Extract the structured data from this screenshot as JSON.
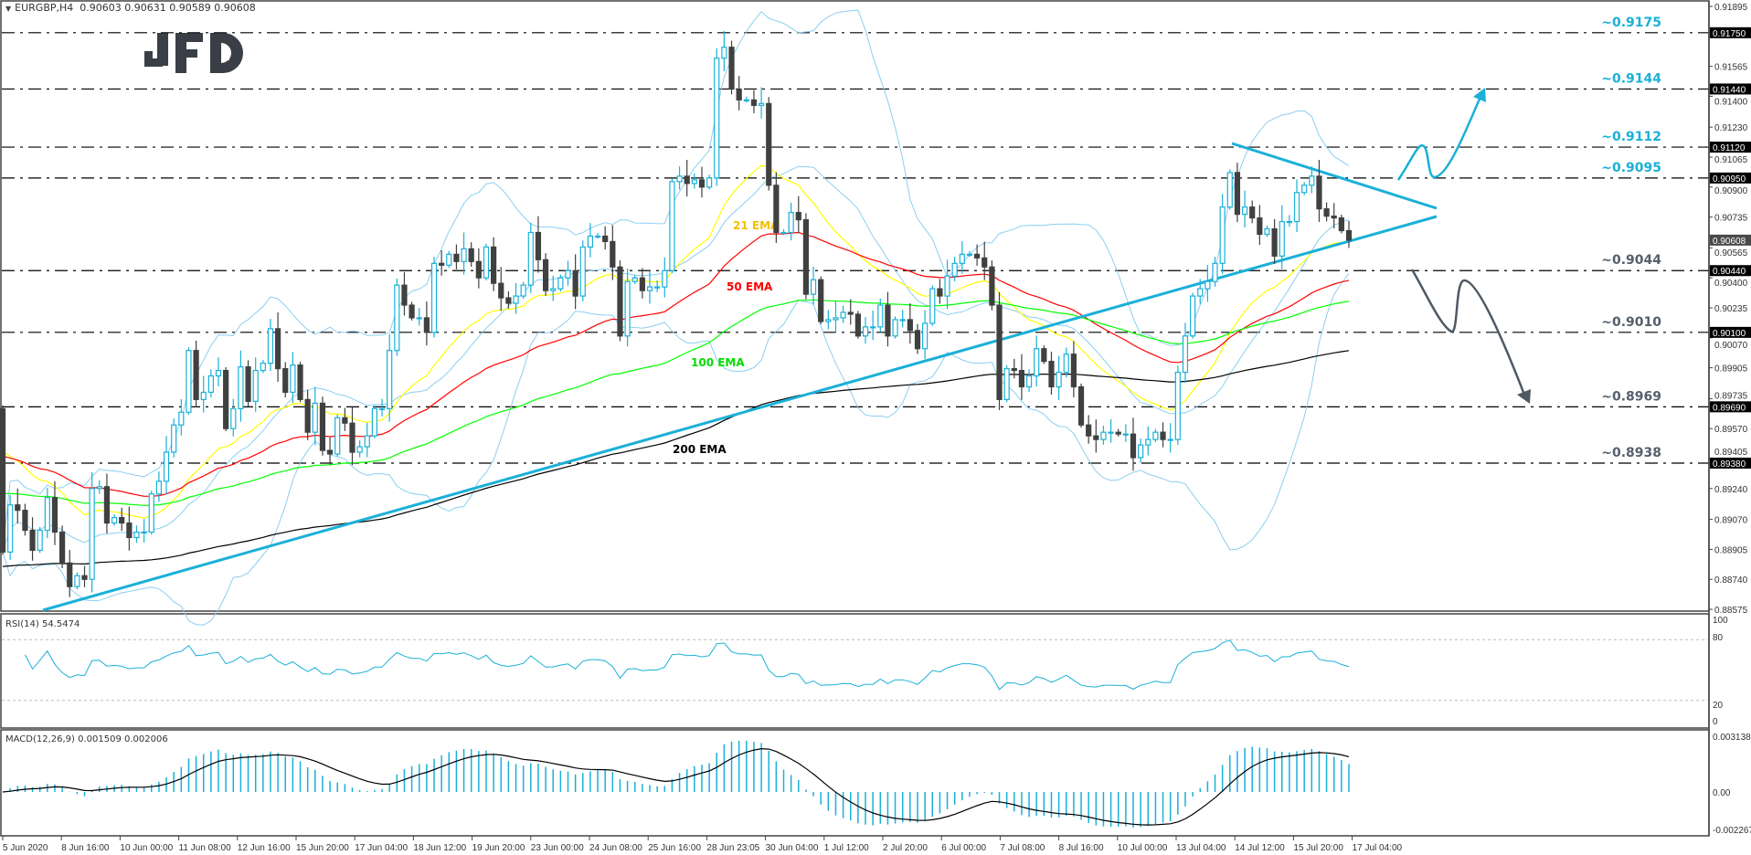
{
  "header": {
    "symbol": "EURGBP,H4",
    "ohlc": "0.90603 0.90631 0.90589 0.90608"
  },
  "logo": "JFD",
  "chart_data": {
    "type": "candlestick",
    "open_first": 0.8968,
    "closes": [
      0.8889,
      0.8915,
      0.8912,
      0.8901,
      0.889,
      0.8901,
      0.8919,
      0.89,
      0.8883,
      0.887,
      0.8876,
      0.8874,
      0.8924,
      0.8925,
      0.8905,
      0.8908,
      0.8905,
      0.8897,
      0.89,
      0.89,
      0.8921,
      0.8928,
      0.8944,
      0.8959,
      0.8966,
      0.9,
      0.8973,
      0.8977,
      0.8986,
      0.8989,
      0.8957,
      0.8968,
      0.8991,
      0.8972,
      0.8989,
      0.8993,
      0.9012,
      0.899,
      0.8977,
      0.8992,
      0.8973,
      0.8955,
      0.8971,
      0.8945,
      0.8943,
      0.8963,
      0.896,
      0.8944,
      0.8947,
      0.8953,
      0.8968,
      0.8968,
      0.9,
      0.9036,
      0.9025,
      0.9018,
      0.9018,
      0.901,
      0.9048,
      0.9047,
      0.9053,
      0.9049,
      0.9056,
      0.9049,
      0.904,
      0.9057,
      0.9037,
      0.9029,
      0.9026,
      0.903,
      0.9036,
      0.9065,
      0.905,
      0.9033,
      0.9034,
      0.904,
      0.9044,
      0.903,
      0.9057,
      0.9063,
      0.9063,
      0.906,
      0.9046,
      0.9008,
      0.9038,
      0.904,
      0.9033,
      0.9035,
      0.9035,
      0.9044,
      0.9093,
      0.9096,
      0.9092,
      0.9094,
      0.909,
      0.9095,
      0.9161,
      0.9167,
      0.9144,
      0.9138,
      0.9138,
      0.9135,
      0.9136,
      0.9091,
      0.9065,
      0.9065,
      0.9076,
      0.9072,
      0.9031,
      0.9039,
      0.9016,
      0.9017,
      0.9018,
      0.9021,
      0.902,
      0.9008,
      0.9013,
      0.9013,
      0.9025,
      0.9008,
      0.9017,
      0.9017,
      0.9011,
      0.9001,
      0.9015,
      0.9034,
      0.903,
      0.9041,
      0.9048,
      0.9053,
      0.9053,
      0.9051,
      0.9046,
      0.9025,
      0.8973,
      0.899,
      0.8989,
      0.898,
      0.8986,
      0.9001,
      0.8994,
      0.898,
      0.8988,
      0.8998,
      0.898,
      0.8959,
      0.8953,
      0.8951,
      0.8955,
      0.8955,
      0.8954,
      0.8954,
      0.8941,
      0.8948,
      0.8951,
      0.8955,
      0.8951,
      0.8951,
      0.8988,
      0.9008,
      0.903,
      0.9034,
      0.9038,
      0.9048,
      0.9079,
      0.9098,
      0.9075,
      0.9079,
      0.9073,
      0.9064,
      0.9067,
      0.9052,
      0.9071,
      0.9071,
      0.9087,
      0.9091,
      0.9096,
      0.9078,
      0.9074,
      0.9073,
      0.9066,
      0.90608
    ],
    "last_price": "0.90608",
    "colors": {
      "bull": "#1ab0d8",
      "bear": "#404040",
      "bands": "#8ccff0",
      "trendline": "#1ab0d8",
      "up_scenario": "#1ab0d8",
      "down_scenario": "#4f5964"
    },
    "price_axis": {
      "min": 0.88575,
      "max": 0.91895,
      "ticks": [
        "0.91895",
        "0.91565",
        "0.91400",
        "0.91230",
        "0.91065",
        "0.90900",
        "0.90735",
        "0.90565",
        "0.90400",
        "0.90235",
        "0.90070",
        "0.89905",
        "0.89735",
        "0.89570",
        "0.89405",
        "0.89240",
        "0.89070",
        "0.88905",
        "0.88740",
        "0.88575"
      ]
    },
    "time_labels": [
      "5 Jun 2020",
      "8 Jun 16:00",
      "10 Jun 00:00",
      "11 Jun 08:00",
      "12 Jun 16:00",
      "15 Jun 20:00",
      "17 Jun 04:00",
      "18 Jun 12:00",
      "19 Jun 20:00",
      "23 Jun 00:00",
      "24 Jun 08:00",
      "25 Jun 16:00",
      "28 Jun 23:05",
      "30 Jun 04:00",
      "1 Jul 12:00",
      "2 Jul 20:00",
      "6 Jul 00:00",
      "7 Jul 08:00",
      "8 Jul 16:00",
      "10 Jul 00:00",
      "13 Jul 04:00",
      "14 Jul 12:00",
      "15 Jul 20:00",
      "17 Jul 04:00"
    ],
    "levels": [
      {
        "label": "~0.9175",
        "value": "0.91750",
        "color": "#1ab0d8"
      },
      {
        "label": "~0.9144",
        "value": "0.91440",
        "color": "#1ab0d8"
      },
      {
        "label": "~0.9112",
        "value": "0.91120",
        "color": "#1ab0d8"
      },
      {
        "label": "~0.9095",
        "value": "0.90950",
        "color": "#1ab0d8"
      },
      {
        "label": "~0.9044",
        "value": "0.90440",
        "color": "#555f6b"
      },
      {
        "label": "~0.9010",
        "value": "0.90100",
        "color": "#555f6b"
      },
      {
        "label": "~0.8969",
        "value": "0.89690",
        "color": "#555f6b"
      },
      {
        "label": "~0.8938",
        "value": "0.89380",
        "color": "#555f6b"
      }
    ],
    "emas": [
      {
        "label": "21 EMA",
        "period": 21,
        "color": "#ffff00",
        "label_color": "#f5c000",
        "start": 0.895
      },
      {
        "label": "50 EMA",
        "period": 50,
        "color": "#ff0000",
        "label_color": "#ff0000",
        "start": 0.8944
      },
      {
        "label": "100 EMA",
        "period": 100,
        "color": "#00ff00",
        "label_color": "#00dd00",
        "start": 0.8922
      },
      {
        "label": "200 EMA",
        "period": 200,
        "color": "#000000",
        "label_color": "#000000",
        "start": 0.8881
      }
    ],
    "bollinger": {
      "period": 20,
      "deviations": 2
    },
    "rsi": {
      "label": "RSI(14) 54.5474",
      "period": 14,
      "levels": [
        80,
        20
      ],
      "range": [
        0,
        100
      ],
      "ticks": [
        "100",
        "80",
        "20",
        "0"
      ]
    },
    "macd": {
      "label": "MACD(12,26,9) 0.001509 0.002006",
      "fast": 12,
      "slow": 26,
      "signal": 9,
      "range": [
        -0.002267,
        0.003138
      ],
      "ticks": [
        "0.003138",
        "0.00",
        "-0.002267"
      ]
    }
  }
}
